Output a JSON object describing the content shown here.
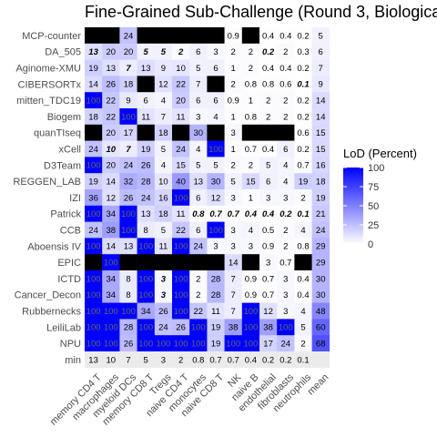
{
  "chart_data": {
    "type": "heatmap",
    "title": "Fine-Grained Sub-Challenge (Round 3, Biologica",
    "legend": {
      "title": "LoD (Percent)",
      "ticks": [
        100,
        75,
        50,
        25,
        0
      ],
      "position": "right"
    },
    "colors": {
      "low": "#ffffff",
      "high": "#0000ff",
      "missing": "#000000",
      "min_row_bg": "#ebebeb"
    },
    "columns": [
      "memory CD4 T",
      "macrophages",
      "myeloid DCs",
      "memory CD8 T",
      "Tregs",
      "naive CD4 T",
      "monocytes",
      "naive CD8 T",
      "NK",
      "naive B",
      "endothelial",
      "fibroblasts",
      "neutrophils",
      "mean"
    ],
    "rows": [
      "MCP-counter",
      "DA_505",
      "Aginome-XMU",
      "CIBERSORTx",
      "mitten_TDC19",
      "Biogem",
      "quanTIseq",
      "xCell",
      "D3Team",
      "REGGEN_LAB",
      "IZI",
      "Patrick",
      "CCB",
      "Aboensis IV",
      "EPIC",
      "ICTD",
      "Cancer_Decon",
      "Rubbernecks",
      "LeiliLab",
      "NPU",
      "min"
    ],
    "values": [
      [
        null,
        null,
        "24",
        null,
        null,
        null,
        null,
        null,
        "0.9",
        null,
        "0.4",
        "0.4",
        "0.2",
        "5"
      ],
      [
        "13",
        "20",
        "20",
        "5",
        "5",
        "2",
        "6",
        "3",
        "2",
        "2",
        "0.2",
        "2",
        "0.3",
        "6"
      ],
      [
        "19",
        "13",
        "7",
        "13",
        "9",
        "10",
        "5",
        "6",
        "1",
        "2",
        "0.4",
        "0.4",
        "0.2",
        "7"
      ],
      [
        "14",
        "26",
        "18",
        null,
        "12",
        "22",
        "7",
        null,
        "2",
        "0.8",
        "0.8",
        "0.6",
        "0.1",
        "9"
      ],
      [
        "100",
        "22",
        "9",
        "6",
        "4",
        "20",
        "6",
        "6",
        "0.9",
        "1",
        "2",
        "2",
        "0.2",
        "14"
      ],
      [
        "18",
        "22",
        "100",
        "11",
        "7",
        "11",
        "3",
        "4",
        "1",
        "0.8",
        "2",
        "2",
        "0.2",
        "14"
      ],
      [
        null,
        "20",
        "17",
        null,
        "18",
        null,
        "30",
        null,
        "3",
        null,
        null,
        null,
        "0.6",
        "15"
      ],
      [
        "24",
        "10",
        "7",
        "19",
        "5",
        "24",
        "4",
        "100",
        "1",
        "0.7",
        "0.4",
        "6",
        "0.2",
        "15"
      ],
      [
        "100",
        "20",
        "24",
        "26",
        "4",
        "15",
        "5",
        "5",
        "2",
        "2",
        "5",
        "4",
        "0.7",
        "16"
      ],
      [
        "19",
        "14",
        "32",
        "28",
        "10",
        "40",
        "13",
        "30",
        "5",
        "15",
        "6",
        "4",
        "19",
        "18"
      ],
      [
        "36",
        "12",
        "26",
        "24",
        "16",
        "100",
        "6",
        "12",
        "3",
        "1",
        "3",
        "3",
        "2",
        "19"
      ],
      [
        "100",
        "34",
        "100",
        "13",
        "18",
        "11",
        "0.8",
        "0.7",
        "0.7",
        "0.4",
        "0.4",
        "0.2",
        "0.1",
        "21"
      ],
      [
        "24",
        "38",
        "100",
        "8",
        "5",
        "22",
        "6",
        "100",
        "3",
        "4",
        "0.5",
        "2",
        "4",
        "24"
      ],
      [
        "100",
        "14",
        "13",
        "100",
        "11",
        "100",
        "24",
        "3",
        "3",
        "3",
        "0.9",
        "2",
        "0.8",
        "29"
      ],
      [
        null,
        "100",
        null,
        null,
        null,
        null,
        null,
        null,
        "14",
        null,
        "3",
        "0.7",
        null,
        "29"
      ],
      [
        "100",
        "34",
        "8",
        "100",
        "3",
        "100",
        "2",
        "28",
        "7",
        "0.9",
        "0.7",
        "3",
        "0.4",
        "30"
      ],
      [
        "100",
        "34",
        "8",
        "100",
        "3",
        "100",
        "2",
        "28",
        "7",
        "0.9",
        "0.7",
        "3",
        "0.4",
        "30"
      ],
      [
        "100",
        "100",
        "100",
        "34",
        "26",
        "100",
        "22",
        "11",
        "7",
        "100",
        "12",
        "3",
        "4",
        "48"
      ],
      [
        "100",
        "100",
        "28",
        "100",
        "24",
        "26",
        "100",
        "19",
        "38",
        "100",
        "38",
        "100",
        "5",
        "60"
      ],
      [
        "100",
        "100",
        "26",
        "100",
        "100",
        "100",
        "100",
        "19",
        "100",
        "100",
        "17",
        "24",
        "2",
        "68"
      ],
      [
        "13",
        "10",
        "7",
        "5",
        "3",
        "2",
        "0.8",
        "0.7",
        "0.7",
        "0.4",
        "0.2",
        "0.2",
        "0.1",
        ""
      ]
    ],
    "bold_italic_cells": [
      [
        1,
        0
      ],
      [
        1,
        3
      ],
      [
        1,
        4
      ],
      [
        1,
        5
      ],
      [
        1,
        10
      ],
      [
        2,
        2
      ],
      [
        3,
        12
      ],
      [
        7,
        1
      ],
      [
        7,
        2
      ],
      [
        11,
        6
      ],
      [
        11,
        7
      ],
      [
        11,
        8
      ],
      [
        11,
        9
      ],
      [
        11,
        10
      ],
      [
        11,
        11
      ],
      [
        11,
        12
      ],
      [
        15,
        4
      ],
      [
        16,
        4
      ]
    ]
  }
}
